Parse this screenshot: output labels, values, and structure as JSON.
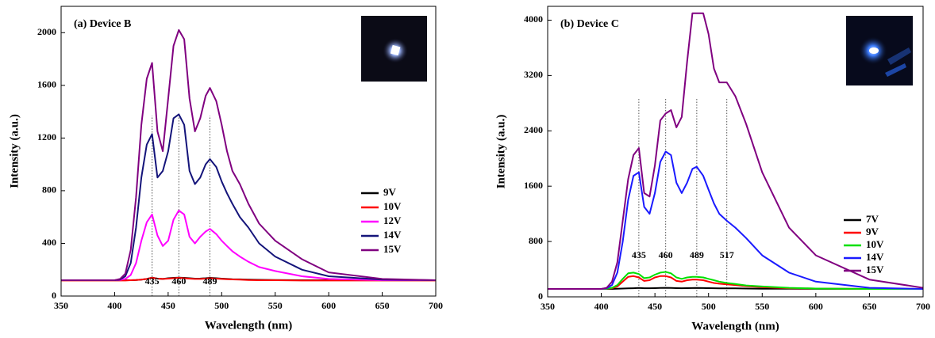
{
  "chart_data": [
    {
      "type": "line",
      "title": "(a) Device B",
      "xlabel": "Wavelength (nm)",
      "ylabel": "Intensity (a.u.)",
      "x": [
        350,
        400,
        405,
        410,
        415,
        420,
        425,
        430,
        435,
        440,
        445,
        450,
        455,
        460,
        465,
        470,
        475,
        480,
        485,
        489,
        495,
        500,
        505,
        510,
        517,
        525,
        535,
        550,
        575,
        600,
        650,
        700
      ],
      "series": [
        {
          "name": "9V",
          "color": "#000000",
          "values": [
            120,
            120,
            120,
            120,
            120,
            122,
            125,
            130,
            140,
            132,
            130,
            135,
            138,
            140,
            138,
            135,
            132,
            133,
            135,
            138,
            135,
            132,
            130,
            128,
            127,
            125,
            123,
            122,
            120,
            120,
            120,
            120
          ]
        },
        {
          "name": "10V",
          "color": "#ff0000",
          "values": [
            118,
            118,
            118,
            118,
            120,
            122,
            125,
            130,
            138,
            132,
            130,
            132,
            135,
            138,
            135,
            132,
            130,
            130,
            132,
            135,
            132,
            130,
            128,
            126,
            125,
            122,
            120,
            120,
            118,
            118,
            118,
            118
          ]
        },
        {
          "name": "12V",
          "color": "#ff00ff",
          "values": [
            120,
            120,
            122,
            130,
            160,
            250,
            420,
            560,
            620,
            460,
            380,
            420,
            580,
            650,
            620,
            450,
            400,
            450,
            490,
            510,
            470,
            420,
            380,
            340,
            300,
            260,
            220,
            190,
            150,
            130,
            120,
            120
          ]
        },
        {
          "name": "14V",
          "color": "#14147a",
          "values": [
            120,
            120,
            125,
            150,
            250,
            520,
            900,
            1150,
            1230,
            900,
            950,
            1100,
            1350,
            1380,
            1300,
            950,
            850,
            900,
            1000,
            1040,
            980,
            870,
            780,
            700,
            600,
            520,
            400,
            300,
            200,
            150,
            125,
            120
          ]
        },
        {
          "name": "15V",
          "color": "#800080",
          "values": [
            120,
            120,
            130,
            170,
            350,
            750,
            1300,
            1650,
            1770,
            1250,
            1100,
            1500,
            1900,
            2020,
            1950,
            1500,
            1250,
            1350,
            1520,
            1580,
            1480,
            1300,
            1100,
            950,
            850,
            700,
            550,
            420,
            280,
            180,
            130,
            120
          ]
        }
      ],
      "peaks": [
        435,
        460,
        489
      ],
      "xlim": [
        350,
        700
      ],
      "xticks": [
        350,
        400,
        450,
        500,
        550,
        600,
        650,
        700
      ],
      "ylim": [
        0,
        2200
      ],
      "yticks": [
        0,
        400,
        800,
        1200,
        1600,
        2000
      ]
    },
    {
      "type": "line",
      "title": "(b) Device C",
      "xlabel": "Wavelength (nm)",
      "ylabel": "Intensity (a.u.)",
      "x": [
        350,
        400,
        405,
        410,
        415,
        420,
        425,
        430,
        435,
        440,
        445,
        450,
        455,
        460,
        465,
        470,
        475,
        480,
        485,
        489,
        495,
        500,
        505,
        510,
        517,
        525,
        535,
        550,
        575,
        600,
        650,
        700
      ],
      "series": [
        {
          "name": "7V",
          "color": "#000000",
          "values": [
            115,
            115,
            115,
            115,
            118,
            120,
            122,
            125,
            128,
            125,
            125,
            126,
            128,
            130,
            128,
            126,
            125,
            126,
            127,
            128,
            127,
            126,
            125,
            124,
            123,
            122,
            120,
            118,
            117,
            116,
            115,
            115
          ]
        },
        {
          "name": "9V",
          "color": "#ff0000",
          "values": [
            115,
            115,
            118,
            125,
            150,
            220,
            290,
            300,
            280,
            230,
            240,
            280,
            300,
            300,
            280,
            230,
            220,
            240,
            250,
            250,
            240,
            220,
            200,
            190,
            180,
            170,
            155,
            140,
            125,
            120,
            115,
            115
          ]
        },
        {
          "name": "10V",
          "color": "#00e000",
          "values": [
            115,
            115,
            118,
            130,
            170,
            260,
            340,
            350,
            330,
            270,
            280,
            320,
            350,
            360,
            340,
            280,
            260,
            280,
            290,
            290,
            280,
            260,
            240,
            220,
            200,
            185,
            165,
            150,
            130,
            120,
            115,
            115
          ]
        },
        {
          "name": "14V",
          "color": "#1a1aff",
          "values": [
            115,
            115,
            125,
            170,
            350,
            800,
            1400,
            1750,
            1800,
            1300,
            1200,
            1500,
            1950,
            2100,
            2050,
            1650,
            1500,
            1650,
            1850,
            1880,
            1750,
            1550,
            1350,
            1200,
            1100,
            1000,
            850,
            600,
            350,
            220,
            130,
            115
          ]
        },
        {
          "name": "15V",
          "color": "#800080",
          "values": [
            115,
            115,
            130,
            220,
            500,
            1100,
            1700,
            2050,
            2150,
            1500,
            1450,
            1900,
            2550,
            2650,
            2700,
            2450,
            2600,
            3400,
            4100,
            4100,
            4100,
            3800,
            3300,
            3100,
            3100,
            2900,
            2500,
            1800,
            1000,
            600,
            250,
            130
          ]
        }
      ],
      "peaks": [
        435,
        460,
        489,
        517
      ],
      "xlim": [
        350,
        700
      ],
      "xticks": [
        350,
        400,
        450,
        500,
        550,
        600,
        650,
        700
      ],
      "ylim": [
        0,
        4200
      ],
      "yticks": [
        0,
        800,
        1600,
        2400,
        3200,
        4000
      ]
    }
  ]
}
